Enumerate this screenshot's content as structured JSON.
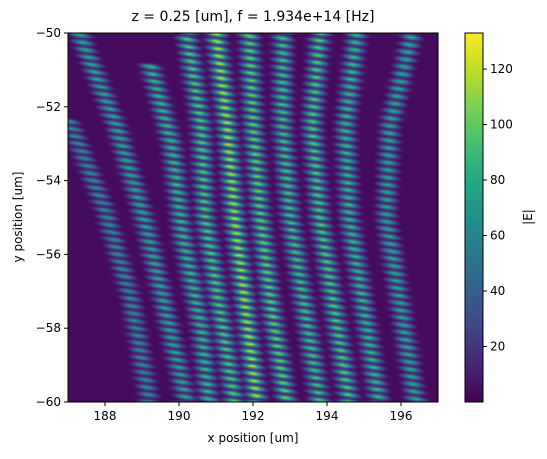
{
  "chart_data": {
    "type": "heatmap",
    "title": "z = 0.25 [um], f = 1.934e+14 [Hz]",
    "xlabel": "x position [um]",
    "ylabel": "y position [um]",
    "xlim": [
      187,
      197
    ],
    "ylim": [
      -60,
      -50
    ],
    "x_ticks": [
      188,
      190,
      192,
      194,
      196
    ],
    "x_tick_labels": [
      "188",
      "190",
      "192",
      "194",
      "196"
    ],
    "y_ticks": [
      -60,
      -58,
      -56,
      -54,
      -52,
      -50
    ],
    "y_tick_labels": [
      "−60",
      "−58",
      "−56",
      "−54",
      "−52",
      "−50"
    ],
    "colorbar": {
      "label": "|E|",
      "colormap": "viridis",
      "range": [
        0,
        133
      ],
      "ticks": [
        20,
        40,
        60,
        80,
        100,
        120
      ],
      "tick_labels": [
        "20",
        "40",
        "60",
        "80",
        "100",
        "120"
      ]
    },
    "field_pattern": {
      "description_of_values": "fringed beams; |E| peaks near 130",
      "beams": [
        {
          "path": [
            [
              187.0,
              -52.3
            ],
            [
              188.0,
              -54.8
            ],
            [
              188.7,
              -57.2
            ],
            [
              189.2,
              -60.0
            ]
          ],
          "amplitude": 70
        },
        {
          "path": [
            [
              187.3,
              -50.0
            ],
            [
              188.3,
              -52.5
            ],
            [
              189.1,
              -55.2
            ],
            [
              189.7,
              -57.8
            ],
            [
              190.2,
              -60.0
            ]
          ],
          "amplitude": 85
        },
        {
          "path": [
            [
              189.2,
              -50.8
            ],
            [
              189.8,
              -53.0
            ],
            [
              190.1,
              -55.5
            ],
            [
              190.6,
              -58.0
            ],
            [
              190.8,
              -60.0
            ]
          ],
          "amplitude": 95
        },
        {
          "path": [
            [
              190.2,
              -50.0
            ],
            [
              190.6,
              -52.5
            ],
            [
              190.7,
              -55.0
            ],
            [
              191.1,
              -57.5
            ],
            [
              191.5,
              -60.0
            ]
          ],
          "amplitude": 105
        },
        {
          "path": [
            [
              191.0,
              -50.0
            ],
            [
              191.3,
              -52.5
            ],
            [
              191.5,
              -55.0
            ],
            [
              191.8,
              -57.5
            ],
            [
              192.1,
              -60.0
            ]
          ],
          "amplitude": 125
        },
        {
          "path": [
            [
              191.9,
              -50.0
            ],
            [
              192.0,
              -52.5
            ],
            [
              192.2,
              -55.0
            ],
            [
              192.5,
              -57.5
            ],
            [
              192.9,
              -60.0
            ]
          ],
          "amplitude": 110
        },
        {
          "path": [
            [
              192.8,
              -50.0
            ],
            [
              192.8,
              -52.5
            ],
            [
              193.0,
              -55.0
            ],
            [
              193.4,
              -57.5
            ],
            [
              193.8,
              -60.0
            ]
          ],
          "amplitude": 100
        },
        {
          "path": [
            [
              193.8,
              -50.0
            ],
            [
              193.6,
              -52.5
            ],
            [
              193.8,
              -55.0
            ],
            [
              194.2,
              -57.5
            ],
            [
              194.6,
              -60.0
            ]
          ],
          "amplitude": 105
        },
        {
          "path": [
            [
              194.8,
              -50.0
            ],
            [
              194.5,
              -52.5
            ],
            [
              194.6,
              -55.0
            ],
            [
              195.0,
              -57.5
            ],
            [
              195.4,
              -60.0
            ]
          ],
          "amplitude": 95
        },
        {
          "path": [
            [
              196.3,
              -50.0
            ],
            [
              195.7,
              -52.5
            ],
            [
              195.6,
              -55.0
            ],
            [
              196.0,
              -57.5
            ],
            [
              196.4,
              -60.0
            ]
          ],
          "amplitude": 85
        }
      ]
    }
  }
}
